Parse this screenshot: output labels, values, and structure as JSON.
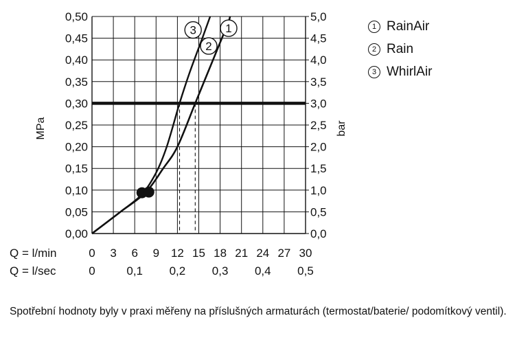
{
  "chart_data": {
    "type": "line",
    "ylabel_left": "MPa",
    "ylabel_right": "bar",
    "y_left_ticks": [
      "0,00",
      "0,05",
      "0,10",
      "0,15",
      "0,20",
      "0,25",
      "0,30",
      "0,35",
      "0,40",
      "0,45",
      "0,50"
    ],
    "y_right_ticks": [
      "0,0",
      "0,5",
      "1,0",
      "1,5",
      "2,0",
      "2,5",
      "3,0",
      "3,5",
      "4,0",
      "4,5",
      "5,0"
    ],
    "x_row1_label": "Q = l/min",
    "x_row1_ticks": [
      "0",
      "3",
      "6",
      "9",
      "12",
      "15",
      "18",
      "21",
      "24",
      "27",
      "30"
    ],
    "x_row2_label": "Q = l/sec",
    "x_row2_ticks": [
      "0",
      "0,1",
      "0,2",
      "0,3",
      "0,4",
      "0,5"
    ],
    "xlim": [
      0,
      30
    ],
    "ylim": [
      0,
      0.5
    ],
    "grid": true,
    "reference_line": {
      "y": 0.3
    },
    "operating_point": {
      "x": 7.5,
      "y": 0.094
    },
    "series": [
      {
        "name": "RainAir",
        "marker": "1",
        "points": [
          [
            0,
            0
          ],
          [
            4,
            0.05
          ],
          [
            7.5,
            0.094
          ],
          [
            10,
            0.15
          ],
          [
            12,
            0.2
          ],
          [
            14.5,
            0.3
          ],
          [
            17,
            0.4
          ],
          [
            19,
            0.48
          ],
          [
            19.4,
            0.5
          ]
        ],
        "label_at": [
          19.2,
          0.473
        ]
      },
      {
        "name": "Rain",
        "marker": "2",
        "points": [
          [
            0,
            0
          ],
          [
            4,
            0.05
          ],
          [
            7.5,
            0.094
          ],
          [
            10,
            0.15
          ],
          [
            12,
            0.2
          ],
          [
            14.5,
            0.3
          ],
          [
            17,
            0.4
          ],
          [
            19,
            0.48
          ],
          [
            19.4,
            0.5
          ]
        ],
        "label_at": [
          16.4,
          0.432
        ]
      },
      {
        "name": "WhirlAir",
        "marker": "3",
        "points": [
          [
            0,
            0
          ],
          [
            4,
            0.05
          ],
          [
            7,
            0.09
          ],
          [
            9,
            0.14
          ],
          [
            10.5,
            0.2
          ],
          [
            12.3,
            0.3
          ],
          [
            13.7,
            0.37
          ],
          [
            15.5,
            0.45
          ],
          [
            16.6,
            0.5
          ]
        ],
        "label_at": [
          14.2,
          0.469
        ]
      }
    ],
    "dropdowns": [
      {
        "x": 12.3,
        "from": 0.3,
        "to": 0
      },
      {
        "x": 14.5,
        "from": 0.3,
        "to": 0
      }
    ]
  },
  "legend": [
    {
      "num": "1",
      "label": "RainAir"
    },
    {
      "num": "2",
      "label": "Rain"
    },
    {
      "num": "3",
      "label": "WhirlAir"
    }
  ],
  "footnote": "Spotřební hodnoty byly v praxi měřeny na příslušných armaturách (termostat/baterie/ podomítkový ventil)."
}
